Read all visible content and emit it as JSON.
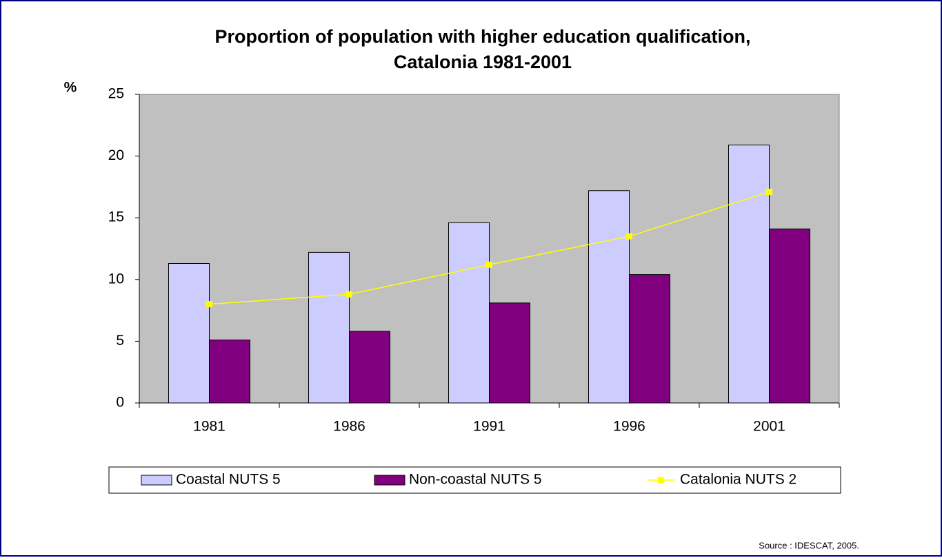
{
  "chart_data": {
    "type": "bar",
    "title": [
      "Proportion of population with higher education qualification,",
      "Catalonia 1981-2001"
    ],
    "y_label": "%",
    "categories": [
      "1981",
      "1986",
      "1991",
      "1996",
      "2001"
    ],
    "series": [
      {
        "name": "Coastal NUTS 5",
        "color": "#ccccff",
        "values": [
          11.3,
          12.2,
          14.6,
          17.2,
          20.9
        ]
      },
      {
        "name": "Non-coastal NUTS 5",
        "color": "#800080",
        "values": [
          5.1,
          5.8,
          8.1,
          10.4,
          14.1
        ]
      },
      {
        "name": "Catalonia NUTS 2",
        "type": "line",
        "color": "#ffff00",
        "values": [
          8.0,
          8.8,
          11.2,
          13.5,
          17.1
        ]
      }
    ],
    "ylim": [
      0,
      25
    ],
    "yticks": [
      0,
      5,
      10,
      15,
      20,
      25
    ],
    "source": "Source : IDESCAT, 2005."
  }
}
